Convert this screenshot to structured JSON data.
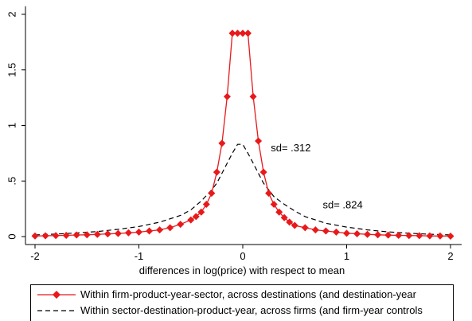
{
  "chart_data": {
    "type": "line",
    "xlabel": "differences in log(price) with respect to mean",
    "ylabel": "",
    "xlim": [
      -2,
      2
    ],
    "ylim": [
      0,
      2
    ],
    "xticks": [
      "-2",
      "-1",
      "0",
      "1",
      "2"
    ],
    "yticks": [
      "0",
      ".5",
      "1",
      "1.5",
      "2"
    ],
    "grid": false,
    "legend_position": "bottom",
    "colors": {
      "series1": "#e8191b",
      "series2": "#000000"
    },
    "series": [
      {
        "name": "Within firm-product-year-sector, across destinations (and destination-year",
        "style": "solid-diamond",
        "x": [
          -2.0,
          -1.9,
          -1.8,
          -1.7,
          -1.6,
          -1.5,
          -1.4,
          -1.3,
          -1.2,
          -1.1,
          -1.0,
          -0.9,
          -0.8,
          -0.7,
          -0.6,
          -0.5,
          -0.45,
          -0.4,
          -0.35,
          -0.3,
          -0.25,
          -0.2,
          -0.15,
          -0.1,
          -0.05,
          0.0,
          0.05,
          0.1,
          0.15,
          0.2,
          0.25,
          0.3,
          0.35,
          0.4,
          0.45,
          0.5,
          0.6,
          0.7,
          0.8,
          0.9,
          1.0,
          1.1,
          1.2,
          1.3,
          1.4,
          1.5,
          1.6,
          1.7,
          1.8,
          1.9,
          2.0
        ],
        "y": [
          0.005,
          0.007,
          0.009,
          0.011,
          0.014,
          0.016,
          0.02,
          0.024,
          0.028,
          0.034,
          0.04,
          0.05,
          0.06,
          0.08,
          0.11,
          0.15,
          0.18,
          0.22,
          0.29,
          0.39,
          0.58,
          0.84,
          1.26,
          1.83,
          1.83,
          1.83,
          1.83,
          1.26,
          0.86,
          0.58,
          0.39,
          0.29,
          0.22,
          0.17,
          0.13,
          0.1,
          0.08,
          0.06,
          0.05,
          0.04,
          0.03,
          0.025,
          0.02,
          0.016,
          0.013,
          0.011,
          0.009,
          0.008,
          0.006,
          0.005,
          0.004
        ]
      },
      {
        "name": "Within sector-destination-product-year, across firms (and firm-year controls",
        "style": "dashed",
        "x": [
          -2.0,
          -1.8,
          -1.6,
          -1.4,
          -1.2,
          -1.0,
          -0.8,
          -0.6,
          -0.5,
          -0.4,
          -0.3,
          -0.25,
          -0.2,
          -0.15,
          -0.1,
          -0.05,
          0.0,
          0.05,
          0.1,
          0.15,
          0.2,
          0.25,
          0.3,
          0.4,
          0.5,
          0.6,
          0.8,
          1.0,
          1.2,
          1.4,
          1.6,
          1.8,
          2.0
        ],
        "y": [
          0.015,
          0.022,
          0.032,
          0.045,
          0.065,
          0.09,
          0.13,
          0.19,
          0.24,
          0.32,
          0.42,
          0.48,
          0.57,
          0.66,
          0.75,
          0.83,
          0.83,
          0.75,
          0.66,
          0.57,
          0.48,
          0.42,
          0.36,
          0.29,
          0.23,
          0.18,
          0.12,
          0.085,
          0.06,
          0.042,
          0.03,
          0.021,
          0.015
        ]
      }
    ],
    "annotations": [
      {
        "text": "sd= .312",
        "x": 0.27,
        "y": 0.79
      },
      {
        "text": "sd= .824",
        "x": 0.77,
        "y": 0.28
      }
    ]
  }
}
